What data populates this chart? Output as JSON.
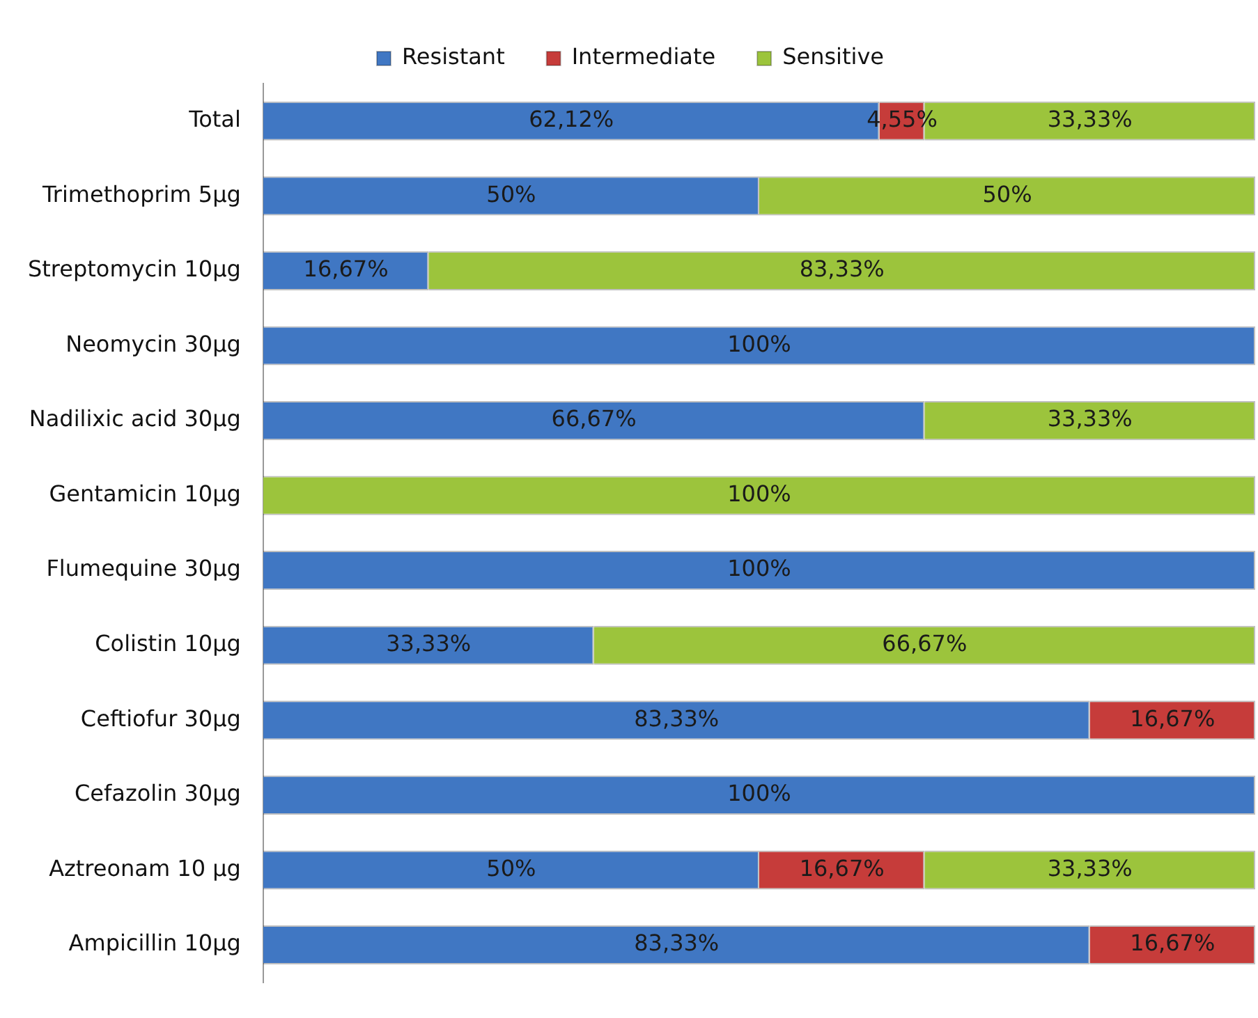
{
  "chart_data": {
    "type": "bar",
    "orientation": "horizontal",
    "stacked": true,
    "legend": "top",
    "tick_labels": "y",
    "grid": false,
    "xlim": [
      0,
      100
    ],
    "categories": [
      "Total",
      "Trimethoprim 5µg",
      "Streptomycin 10µg",
      "Neomycin 30µg",
      "Nadilixic acid 30µg",
      "Gentamicin 10µg",
      "Flumequine 30µg",
      "Colistin 10µg",
      "Ceftiofur 30µg",
      "Cefazolin 30µg",
      "Aztreonam 10 µg",
      "Ampicillin 10µg"
    ],
    "series": [
      {
        "name": "Resistant",
        "color": "#4077c3",
        "values": [
          62.12,
          50,
          16.67,
          100,
          66.67,
          null,
          100,
          33.33,
          83.33,
          100,
          50,
          83.33
        ],
        "value_labels": [
          "62,12%",
          "50%",
          "16,67%",
          "100%",
          "66,67%",
          null,
          "100%",
          "33,33%",
          "83,33%",
          "100%",
          "50%",
          "83,33%"
        ]
      },
      {
        "name": "Intermediate",
        "color": "#c63c3a",
        "values": [
          4.55,
          null,
          null,
          null,
          null,
          null,
          null,
          null,
          16.67,
          null,
          16.67,
          16.67
        ],
        "value_labels": [
          "4,55%",
          null,
          null,
          null,
          null,
          null,
          null,
          null,
          "16,67%",
          null,
          "16,67%",
          "16,67%"
        ]
      },
      {
        "name": "Sensitive",
        "color": "#9cc43c",
        "values": [
          33.33,
          50,
          83.33,
          null,
          33.33,
          100,
          null,
          66.67,
          null,
          null,
          33.33,
          null
        ],
        "value_labels": [
          "33,33%",
          "50%",
          "83,33%",
          null,
          "33,33%",
          "100%",
          null,
          "66,67%",
          null,
          null,
          "33,33%",
          null
        ]
      }
    ]
  }
}
